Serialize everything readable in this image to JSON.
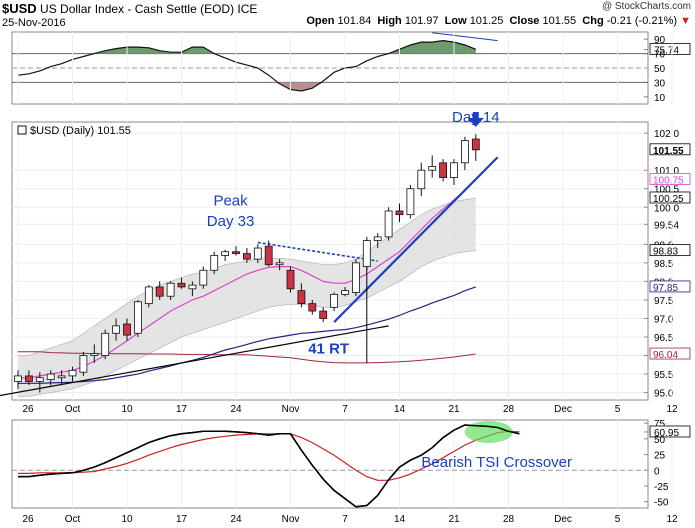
{
  "header": {
    "symbol": "$USD",
    "title": "US Dollar Index - Cash Settle (EOD) ICE",
    "date": "25-Nov-2016",
    "brand": "@ StockCharts.com",
    "open_label": "Open",
    "open": "101.84",
    "high_label": "High",
    "high": "101.97",
    "low_label": "Low",
    "low": "101.25",
    "close_label": "Close",
    "close": "101.55",
    "chg_label": "Chg",
    "chg": "-0.21 (-0.21%)"
  },
  "colors": {
    "up_candle": "#ffffff",
    "down_candle": "#cc3344",
    "ma_short": "#dd44cc",
    "ma_long": "#222288",
    "band_fill": "#dddddd",
    "trendline": "#1a3fc0",
    "rsi_fill_high": "#6e9a6e",
    "rsi_fill_low": "#b99090",
    "tsi": "#000000",
    "tsi_signal": "#cc2222",
    "crossover_highlight": "#55dd55",
    "annotation": "#1a3fc0"
  },
  "chart_data": [
    {
      "panel": "upper",
      "type": "area",
      "ylim": [
        0,
        100
      ],
      "y_ticks": [
        "90",
        "75.74",
        "70",
        "50",
        "30",
        "10"
      ],
      "highlight_value": "75.74",
      "levels": [
        70,
        30
      ],
      "values": [
        40,
        42,
        46,
        52,
        56,
        62,
        66,
        70,
        74,
        77,
        79,
        79,
        78,
        74,
        72,
        72,
        79,
        79,
        70,
        64,
        58,
        54,
        50,
        40,
        28,
        20,
        18,
        22,
        32,
        44,
        50,
        52,
        60,
        66,
        70,
        76,
        82,
        86,
        86,
        88,
        86,
        82,
        76
      ]
    },
    {
      "panel": "main",
      "type": "candlestick",
      "legend": "$USD (Daily) 101.55",
      "ylim": [
        94.8,
        102.3
      ],
      "y_ticks": [
        "102.0",
        "101.0",
        "100.5",
        "100.0",
        "99.54",
        "99.0",
        "98.5",
        "98.0",
        "97.5",
        "97.0",
        "96.5",
        "96.0",
        "95.5",
        "95.0"
      ],
      "value_labels": [
        {
          "text": "101.55",
          "value": 101.55,
          "color": "#000000",
          "bold": true
        },
        {
          "text": "100.75",
          "value": 100.75,
          "color": "#dd44cc",
          "bold": false
        },
        {
          "text": "100.25",
          "value": 100.25,
          "color": "#000000",
          "bold": false
        },
        {
          "text": "98.83",
          "value": 98.83,
          "color": "#000000",
          "bold": false
        },
        {
          "text": "97.85",
          "value": 97.85,
          "color": "#222288",
          "bold": false
        },
        {
          "text": "96.04",
          "value": 96.04,
          "color": "#aa2244",
          "bold": false
        }
      ],
      "x_ticks": [
        "26",
        "Oct",
        "10",
        "17",
        "24",
        "Nov",
        "7",
        "14",
        "21",
        "28",
        "Dec",
        "5",
        "12"
      ],
      "candles": [
        {
          "o": 95.3,
          "h": 95.6,
          "l": 95.1,
          "c": 95.45
        },
        {
          "o": 95.45,
          "h": 95.6,
          "l": 95.2,
          "c": 95.3
        },
        {
          "o": 95.3,
          "h": 95.55,
          "l": 95.0,
          "c": 95.4
        },
        {
          "o": 95.35,
          "h": 95.6,
          "l": 95.2,
          "c": 95.5
        },
        {
          "o": 95.4,
          "h": 95.6,
          "l": 95.2,
          "c": 95.45
        },
        {
          "o": 95.45,
          "h": 95.7,
          "l": 95.3,
          "c": 95.6
        },
        {
          "o": 95.55,
          "h": 96.1,
          "l": 95.45,
          "c": 96.0
        },
        {
          "o": 96.0,
          "h": 96.3,
          "l": 95.8,
          "c": 96.05
        },
        {
          "o": 96.0,
          "h": 96.7,
          "l": 95.9,
          "c": 96.6
        },
        {
          "o": 96.6,
          "h": 97.0,
          "l": 96.4,
          "c": 96.8
        },
        {
          "o": 96.85,
          "h": 97.0,
          "l": 96.4,
          "c": 96.55
        },
        {
          "o": 96.6,
          "h": 97.5,
          "l": 96.5,
          "c": 97.45
        },
        {
          "o": 97.4,
          "h": 97.9,
          "l": 97.3,
          "c": 97.85
        },
        {
          "o": 97.85,
          "h": 98.0,
          "l": 97.5,
          "c": 97.6
        },
        {
          "o": 97.6,
          "h": 98.0,
          "l": 97.5,
          "c": 97.95
        },
        {
          "o": 97.95,
          "h": 98.1,
          "l": 97.8,
          "c": 97.85
        },
        {
          "o": 97.8,
          "h": 98.0,
          "l": 97.6,
          "c": 97.9
        },
        {
          "o": 97.9,
          "h": 98.4,
          "l": 97.8,
          "c": 98.3
        },
        {
          "o": 98.3,
          "h": 98.8,
          "l": 98.2,
          "c": 98.7
        },
        {
          "o": 98.7,
          "h": 98.85,
          "l": 98.55,
          "c": 98.8
        },
        {
          "o": 98.8,
          "h": 98.95,
          "l": 98.7,
          "c": 98.75
        },
        {
          "o": 98.75,
          "h": 98.9,
          "l": 98.5,
          "c": 98.6
        },
        {
          "o": 98.6,
          "h": 99.0,
          "l": 98.5,
          "c": 98.9
        },
        {
          "o": 98.95,
          "h": 99.1,
          "l": 98.4,
          "c": 98.45
        },
        {
          "o": 98.45,
          "h": 98.6,
          "l": 98.3,
          "c": 98.5
        },
        {
          "o": 98.3,
          "h": 98.4,
          "l": 97.7,
          "c": 97.8
        },
        {
          "o": 97.75,
          "h": 97.95,
          "l": 97.3,
          "c": 97.4
        },
        {
          "o": 97.4,
          "h": 97.5,
          "l": 97.1,
          "c": 97.2
        },
        {
          "o": 97.2,
          "h": 97.3,
          "l": 96.9,
          "c": 97.0
        },
        {
          "o": 97.3,
          "h": 97.7,
          "l": 97.2,
          "c": 97.65
        },
        {
          "o": 97.65,
          "h": 97.85,
          "l": 97.6,
          "c": 97.75
        },
        {
          "o": 97.7,
          "h": 98.6,
          "l": 97.6,
          "c": 98.5
        },
        {
          "o": 98.4,
          "h": 99.2,
          "l": 98.3,
          "c": 99.1
        },
        {
          "o": 99.1,
          "h": 99.3,
          "l": 98.9,
          "c": 99.2
        },
        {
          "o": 99.2,
          "h": 100.0,
          "l": 99.1,
          "c": 99.9
        },
        {
          "o": 99.9,
          "h": 100.1,
          "l": 99.6,
          "c": 99.8
        },
        {
          "o": 99.8,
          "h": 100.6,
          "l": 99.7,
          "c": 100.5
        },
        {
          "o": 100.5,
          "h": 101.2,
          "l": 100.3,
          "c": 101.0
        },
        {
          "o": 101.0,
          "h": 101.4,
          "l": 100.8,
          "c": 101.1
        },
        {
          "o": 101.2,
          "h": 101.3,
          "l": 100.7,
          "c": 100.8
        },
        {
          "o": 100.8,
          "h": 101.3,
          "l": 100.6,
          "c": 101.2
        },
        {
          "o": 101.2,
          "h": 101.9,
          "l": 101.0,
          "c": 101.8
        },
        {
          "o": 101.84,
          "h": 101.97,
          "l": 101.25,
          "c": 101.55
        }
      ],
      "ma_short": [
        95.4,
        95.4,
        95.45,
        95.5,
        95.55,
        95.6,
        95.7,
        95.85,
        96.0,
        96.2,
        96.4,
        96.6,
        96.8,
        97.0,
        97.2,
        97.35,
        97.5,
        97.6,
        97.75,
        97.9,
        98.05,
        98.2,
        98.3,
        98.38,
        98.4,
        98.4,
        98.3,
        98.15,
        98.0,
        97.95,
        97.95,
        98.05,
        98.2,
        98.4,
        98.6,
        98.8,
        99.1,
        99.4,
        99.7,
        99.95,
        100.2,
        100.45,
        100.75
      ],
      "ma_long": [
        95.25,
        95.25,
        95.25,
        95.26,
        95.27,
        95.28,
        95.3,
        95.32,
        95.35,
        95.4,
        95.45,
        95.5,
        95.58,
        95.65,
        95.72,
        95.8,
        95.87,
        95.95,
        96.05,
        96.15,
        96.22,
        96.3,
        96.38,
        96.45,
        96.5,
        96.55,
        96.6,
        96.62,
        96.65,
        96.68,
        96.7,
        96.75,
        96.82,
        96.9,
        96.98,
        97.08,
        97.2,
        97.3,
        97.42,
        97.52,
        97.62,
        97.75,
        97.85
      ],
      "band_upper": [
        96.0,
        96.0,
        96.1,
        96.2,
        96.3,
        96.4,
        96.6,
        96.8,
        97.0,
        97.2,
        97.4,
        97.6,
        97.75,
        97.9,
        98.0,
        98.1,
        98.2,
        98.25,
        98.35,
        98.45,
        98.5,
        98.55,
        98.6,
        98.62,
        98.62,
        98.6,
        98.55,
        98.5,
        98.45,
        98.45,
        98.5,
        98.6,
        98.8,
        99.0,
        99.2,
        99.4,
        99.6,
        99.8,
        99.95,
        100.05,
        100.15,
        100.2,
        100.25
      ],
      "band_lower": [
        94.9,
        94.9,
        94.95,
        95.0,
        95.05,
        95.1,
        95.2,
        95.3,
        95.45,
        95.6,
        95.75,
        95.9,
        96.05,
        96.2,
        96.35,
        96.5,
        96.6,
        96.7,
        96.8,
        96.9,
        97.0,
        97.1,
        97.2,
        97.3,
        97.35,
        97.38,
        97.38,
        97.35,
        97.3,
        97.3,
        97.35,
        97.45,
        97.55,
        97.7,
        97.85,
        98.0,
        98.2,
        98.4,
        98.55,
        98.65,
        98.75,
        98.8,
        98.83
      ],
      "ma_flat_red": [
        96.1,
        96.1,
        96.1,
        96.08,
        96.07,
        96.06,
        96.06,
        96.05,
        96.05,
        96.05,
        96.05,
        96.05,
        96.04,
        96.04,
        96.04,
        96.03,
        96.03,
        96.03,
        96.02,
        96.02,
        96.02,
        96.02,
        96.0,
        95.98,
        95.96,
        95.94,
        95.9,
        95.86,
        95.83,
        95.81,
        95.8,
        95.8,
        95.8,
        95.81,
        95.82,
        95.83,
        95.85,
        95.87,
        95.9,
        95.93,
        95.96,
        96.0,
        96.04
      ],
      "trendlines": [
        {
          "from": [
            -3,
            94.85
          ],
          "to": [
            34,
            96.8
          ],
          "color": "#000000",
          "dashed": false
        },
        {
          "from": [
            29,
            96.9
          ],
          "to": [
            44,
            101.35
          ],
          "color": "#1a3fc0",
          "dashed": false
        },
        {
          "from": [
            22,
            99.05
          ],
          "to": [
            33,
            98.55
          ],
          "color": "#1a3fc0",
          "dashed": true
        }
      ],
      "vertical_marker": {
        "x": 32,
        "from": 95.8,
        "to": 98.5
      },
      "annotations": [
        {
          "text": "Peak",
          "x": 19.5,
          "y": 100.05
        },
        {
          "text": "Day 33",
          "x": 19.5,
          "y": 99.5
        },
        {
          "text": "Day 14",
          "x": 42,
          "y": 102.3
        },
        {
          "text": "41 RT",
          "x": 28.5,
          "y": 96.05
        }
      ],
      "arrow_at": 42
    },
    {
      "panel": "lower",
      "type": "line",
      "ylim": [
        -60,
        80
      ],
      "y_ticks": [
        "75",
        "60.95",
        "50",
        "25",
        "0",
        "-25",
        "-50"
      ],
      "highlight_value": "60.95",
      "annotation": "Bearish TSI Crossover",
      "tsi": [
        -10,
        -10,
        -8,
        -6,
        -5,
        -4,
        0,
        5,
        12,
        20,
        28,
        36,
        44,
        50,
        55,
        58,
        60,
        62,
        62,
        62,
        61,
        60,
        58,
        56,
        58,
        58,
        32,
        8,
        -14,
        -32,
        -45,
        -58,
        -56,
        -40,
        -15,
        5,
        16,
        24,
        36,
        52,
        64,
        72,
        71,
        70,
        68,
        62,
        58
      ],
      "signal": [
        -5,
        -5,
        -4,
        -4,
        -4,
        -4,
        -3,
        -2,
        2,
        6,
        11,
        17,
        24,
        30,
        36,
        41,
        45,
        49,
        52,
        54,
        56,
        57,
        58,
        58,
        58,
        58,
        52,
        44,
        34,
        24,
        12,
        0,
        -10,
        -16,
        -16,
        -12,
        -6,
        2,
        10,
        20,
        30,
        40,
        48,
        54,
        60,
        62,
        61
      ]
    }
  ]
}
